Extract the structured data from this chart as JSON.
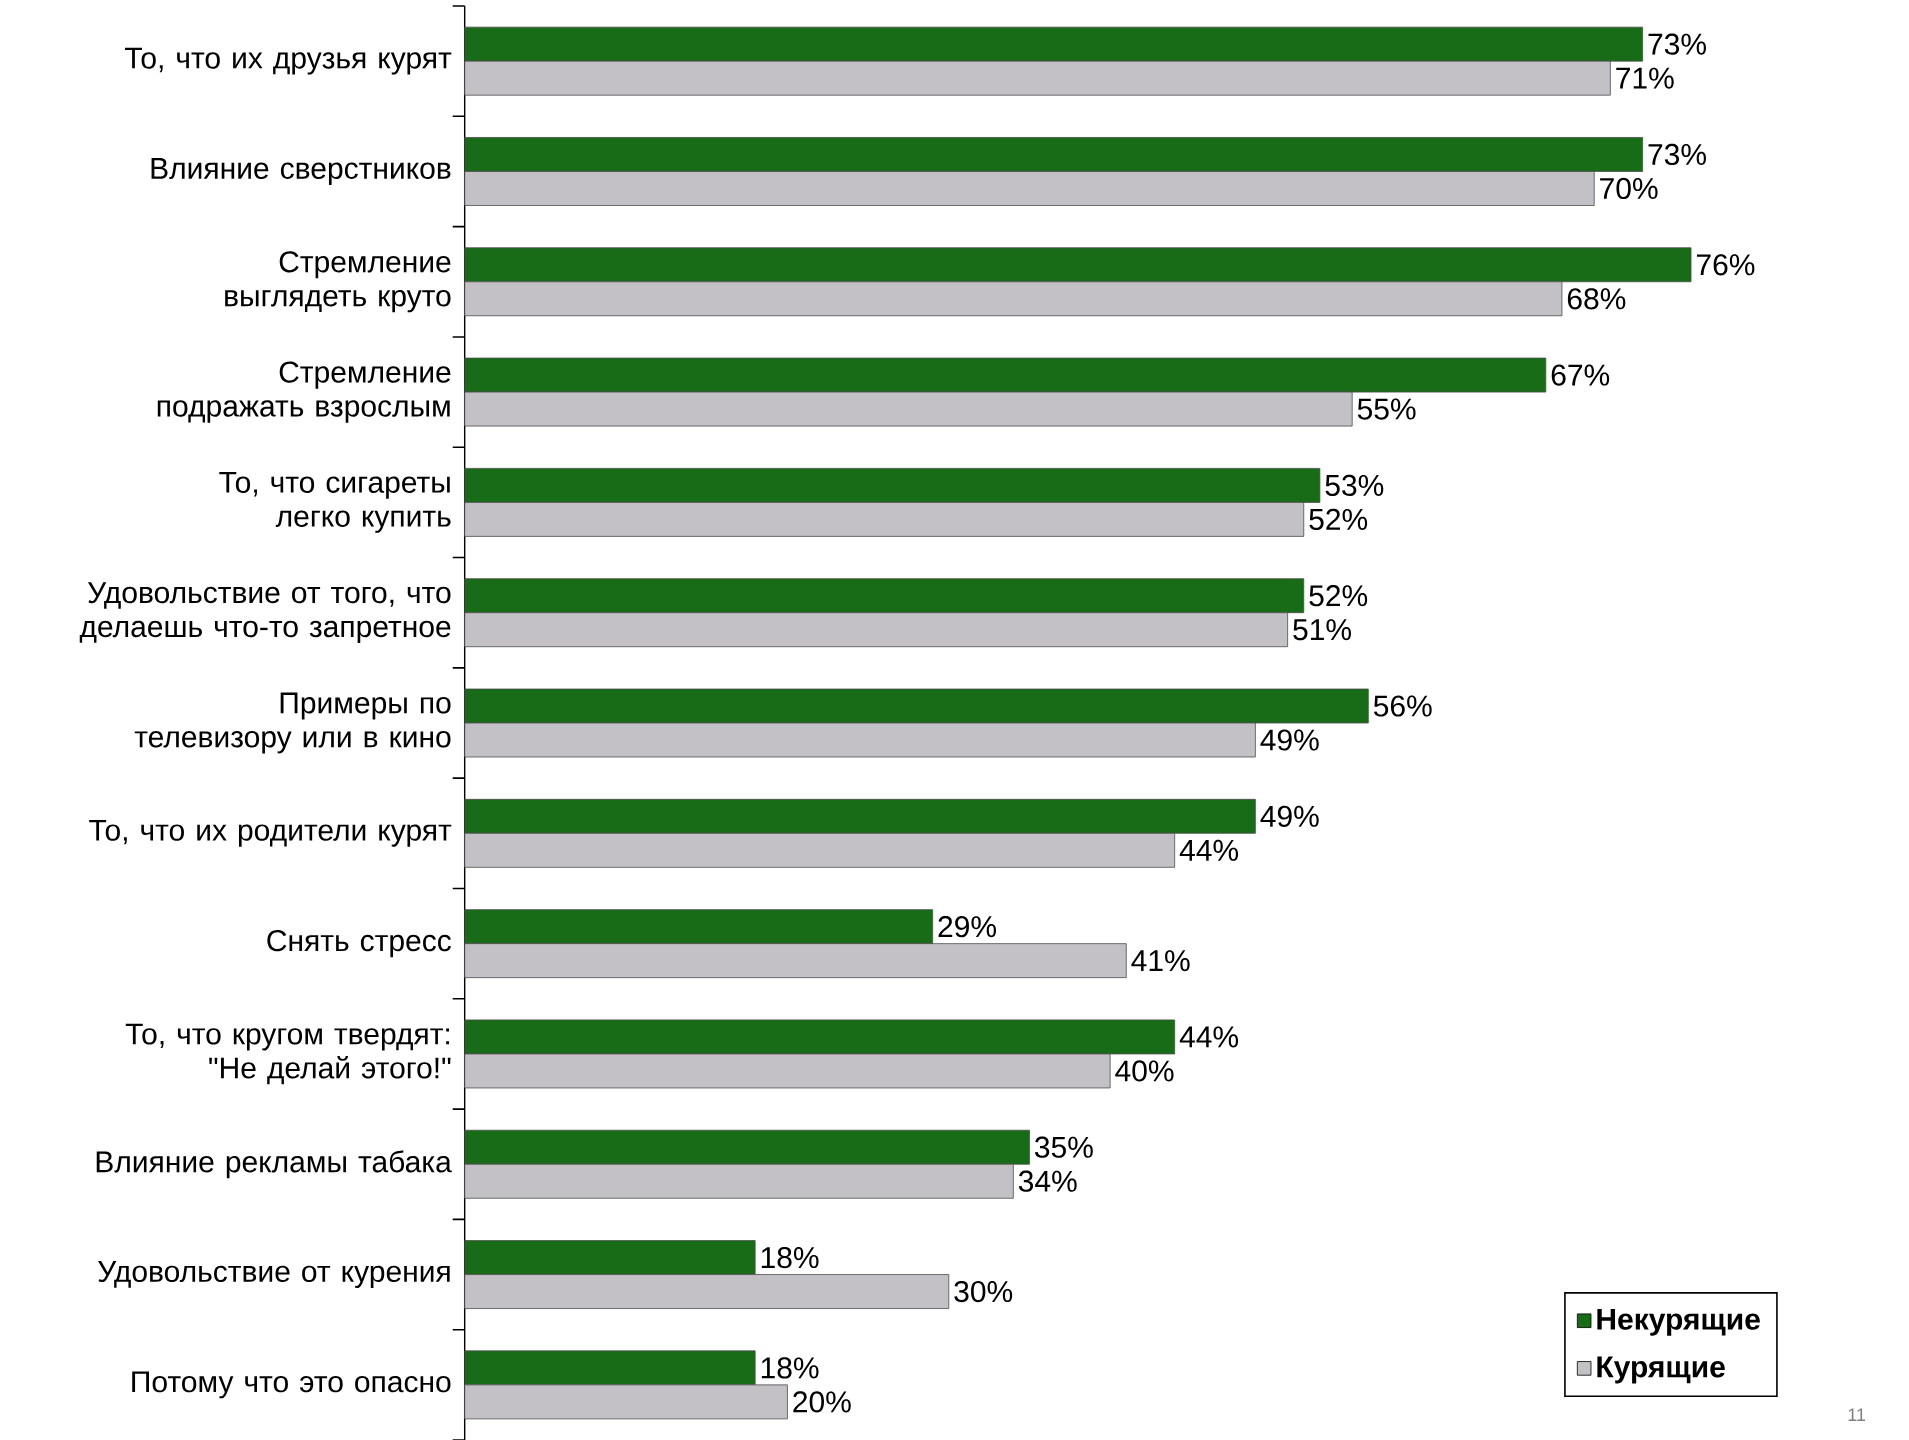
{
  "chart_data": {
    "type": "bar",
    "orientation": "horizontal",
    "categories": [
      "То, что их друзья курят",
      "Влияние сверстников",
      "Стремление выглядеть круто",
      "Стремление подражать взрослым",
      "То, что сигареты легко купить",
      "Удовольствие от того, что делаешь что-то запретное",
      "Примеры по телевизору или в кино",
      "То, что их родители курят",
      "Снять стресс",
      "То, что кругом твердят: \"Не делай этого!\"",
      "Влияние рекламы табака",
      "Удовольствие от курения",
      "Потому что это опасно"
    ],
    "series": [
      {
        "name": "Некурящие",
        "color": "#186c18",
        "values": [
          73,
          73,
          76,
          67,
          53,
          52,
          56,
          49,
          29,
          44,
          35,
          18,
          18
        ],
        "value_labels": [
          "73%",
          "73%",
          "76%",
          "67%",
          "53%",
          "52%",
          "56%",
          "49%",
          "29%",
          "44%",
          "35%",
          "18%",
          "18%"
        ]
      },
      {
        "name": "Курящие",
        "color": "#c3c1c6",
        "values": [
          71,
          70,
          68,
          55,
          52,
          51,
          49,
          44,
          41,
          40,
          34,
          30,
          20
        ],
        "value_labels": [
          "71%",
          "70%",
          "68%",
          "55%",
          "52%",
          "51%",
          "49%",
          "44%",
          "41%",
          "40%",
          "34%",
          "30%",
          "20%"
        ]
      }
    ],
    "legend": "bottom right",
    "annotations": [
      "11"
    ]
  }
}
